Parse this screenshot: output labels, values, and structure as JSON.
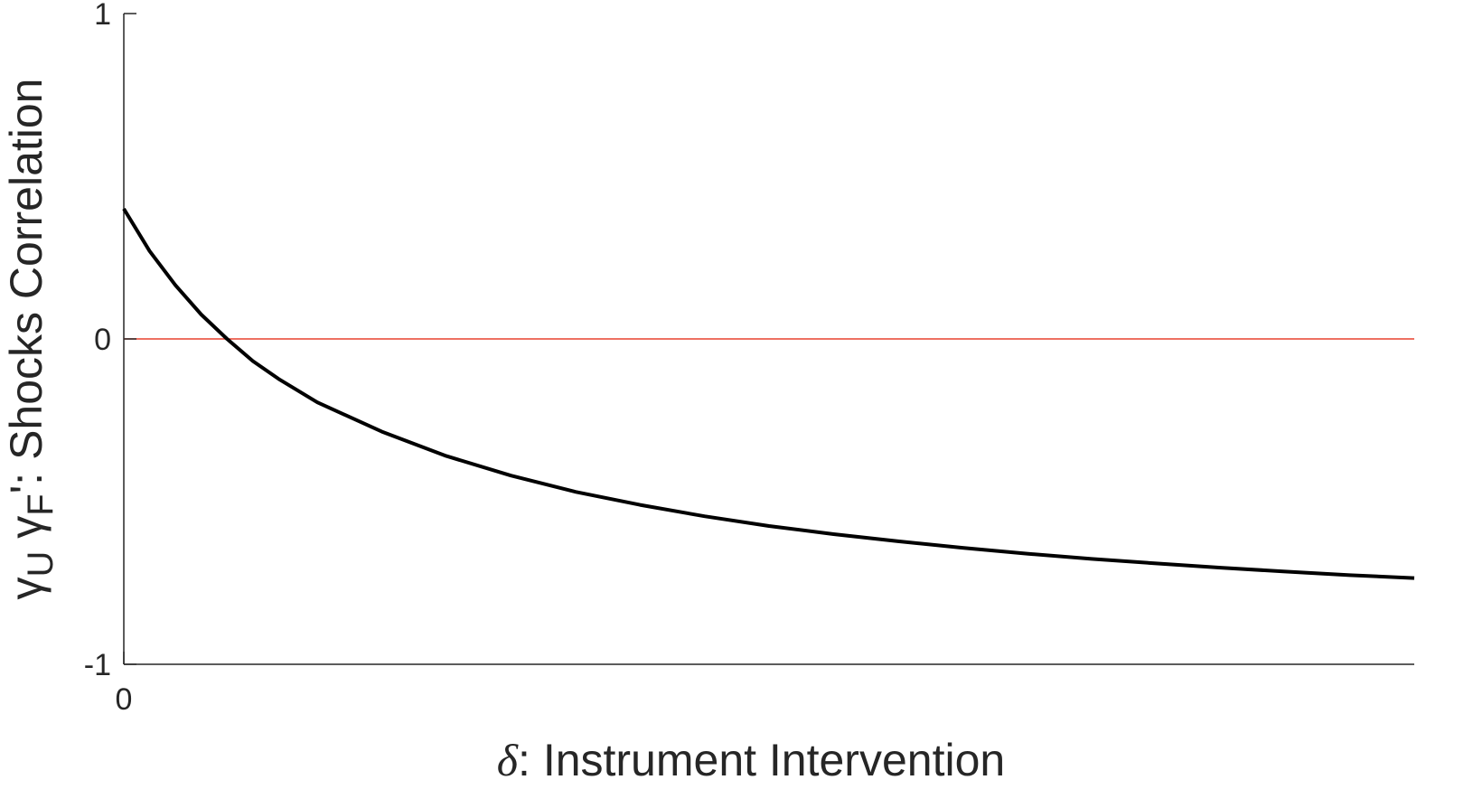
{
  "chart_data": {
    "type": "line",
    "xlabel_symbol": "δ",
    "xlabel_text": ": Instrument Intervention",
    "ylabel_prefix": "γ",
    "ylabel_sub1": "U",
    "ylabel_mid": " γ",
    "ylabel_sub2": "F",
    "ylabel_text": "': Shocks Correlation",
    "xlim": [
      0,
      1
    ],
    "ylim": [
      -1,
      1
    ],
    "x_ticks": [
      0
    ],
    "x_tick_labels": [
      "0"
    ],
    "y_ticks": [
      -1,
      0,
      1
    ],
    "y_tick_labels": [
      "-1",
      "0",
      "1"
    ],
    "grid": false,
    "reference_line": {
      "y": 0,
      "color": "#e8412f"
    },
    "series": [
      {
        "color": "#000000",
        "x": [
          0,
          0.02,
          0.04,
          0.06,
          0.08,
          0.1,
          0.12,
          0.15,
          0.2,
          0.25,
          0.3,
          0.35,
          0.4,
          0.45,
          0.5,
          0.55,
          0.6,
          0.65,
          0.7,
          0.75,
          0.8,
          0.85,
          0.9,
          0.95,
          1.0
        ],
        "y": [
          0.4,
          0.27,
          0.165,
          0.075,
          0.0,
          -0.068,
          -0.123,
          -0.195,
          -0.285,
          -0.36,
          -0.42,
          -0.47,
          -0.51,
          -0.545,
          -0.575,
          -0.6,
          -0.622,
          -0.642,
          -0.66,
          -0.676,
          -0.69,
          -0.703,
          -0.715,
          -0.726,
          -0.735
        ]
      }
    ]
  }
}
